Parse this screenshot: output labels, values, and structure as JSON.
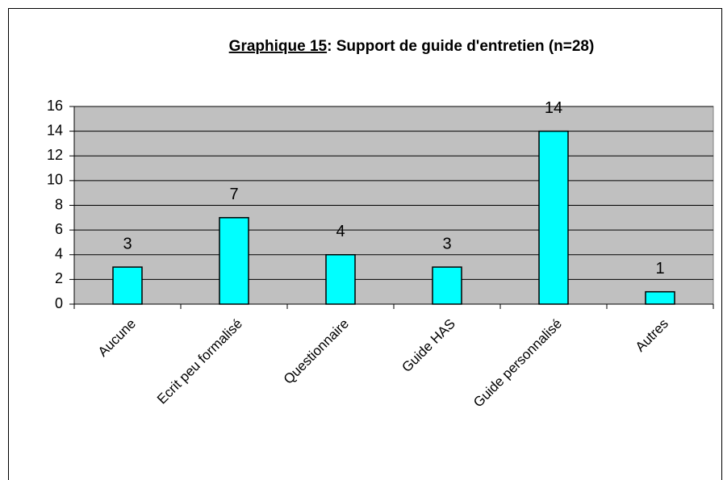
{
  "chart_data": {
    "type": "bar",
    "title_prefix": "Graphique 15",
    "title": ": Support de guide d'entretien (n=28)",
    "categories": [
      "Aucune",
      "Ecrit peu formalisé",
      "Questionnaire",
      "Guide HAS",
      "Guide personnalisé",
      "Autres"
    ],
    "values": [
      3,
      7,
      4,
      3,
      14,
      1
    ],
    "color": "#00ffff",
    "ylim": [
      0,
      16
    ],
    "yticks": [
      0,
      2,
      4,
      6,
      8,
      10,
      12,
      14,
      16
    ],
    "grid": true
  }
}
